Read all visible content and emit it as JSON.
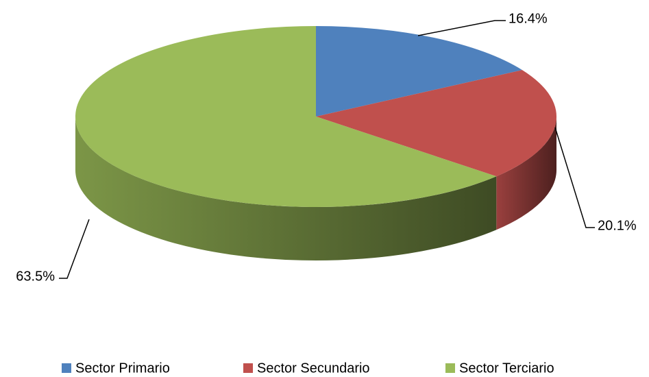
{
  "chart_data": {
    "type": "pie",
    "categories": [
      "Sector Primario",
      "Sector Secundario",
      "Sector Terciario"
    ],
    "values": [
      16.4,
      20.1,
      63.5
    ],
    "value_labels": [
      "16.4%",
      "20.1%",
      "63.5%"
    ],
    "colors": [
      "#4f81bd",
      "#c0504d",
      "#9bbb59"
    ],
    "legend": "bottom"
  }
}
